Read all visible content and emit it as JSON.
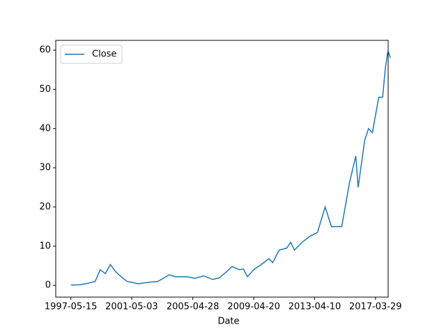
{
  "chart_data": {
    "type": "line",
    "x_label": "Date",
    "x": [
      "1997-05-15",
      "1997-12-15",
      "1998-06-15",
      "1998-12-15",
      "1999-04-15",
      "1999-08-15",
      "1999-12-10",
      "2000-04-15",
      "2000-09-15",
      "2001-01-15",
      "2001-05-03",
      "2001-10-01",
      "2002-06-15",
      "2003-01-15",
      "2003-10-15",
      "2004-03-15",
      "2004-12-15",
      "2005-06-15",
      "2006-01-15",
      "2006-08-15",
      "2007-01-15",
      "2007-07-15",
      "2007-11-15",
      "2008-05-15",
      "2008-08-15",
      "2008-11-20",
      "2009-04-20",
      "2009-10-15",
      "2010-04-15",
      "2010-07-15",
      "2010-12-15",
      "2011-06-15",
      "2011-09-15",
      "2011-12-15",
      "2012-06-15",
      "2012-12-15",
      "2013-06-15",
      "2013-12-15",
      "2014-05-15",
      "2014-10-15",
      "2015-01-15",
      "2015-07-15",
      "2015-12-15",
      "2016-02-10",
      "2016-07-15",
      "2016-10-15",
      "2017-01-15",
      "2017-06-15",
      "2017-09-15",
      "2017-11-15",
      "2018-01-20",
      "2018-03-20"
    ],
    "series": [
      {
        "name": "Close",
        "color": "#1f77b4",
        "values": [
          0.08,
          0.15,
          0.5,
          1.0,
          4.0,
          3.0,
          5.3,
          3.5,
          2.0,
          1.0,
          0.8,
          0.4,
          0.8,
          1.0,
          2.7,
          2.2,
          2.2,
          1.8,
          2.4,
          1.5,
          1.9,
          3.5,
          4.8,
          4.0,
          4.2,
          2.2,
          4.0,
          5.3,
          6.8,
          5.8,
          9.0,
          9.5,
          11.0,
          9.0,
          11.0,
          12.5,
          13.5,
          20.0,
          15.0,
          15.0,
          15.0,
          26.0,
          33.0,
          25.0,
          37.0,
          40.0,
          39.0,
          48.0,
          48.0,
          55.0,
          60.0,
          58.0
        ]
      }
    ],
    "xlim": [
      "1996-05-20",
      "2018-01-25"
    ],
    "xticks": [
      "1997-05-15",
      "2001-05-03",
      "2005-04-28",
      "2009-04-20",
      "2013-04-10",
      "2017-03-29"
    ],
    "ylim": [
      -3,
      62.5
    ],
    "yticks": [
      0,
      10,
      20,
      30,
      40,
      50,
      60
    ],
    "legend": "upper left",
    "grid": false
  }
}
